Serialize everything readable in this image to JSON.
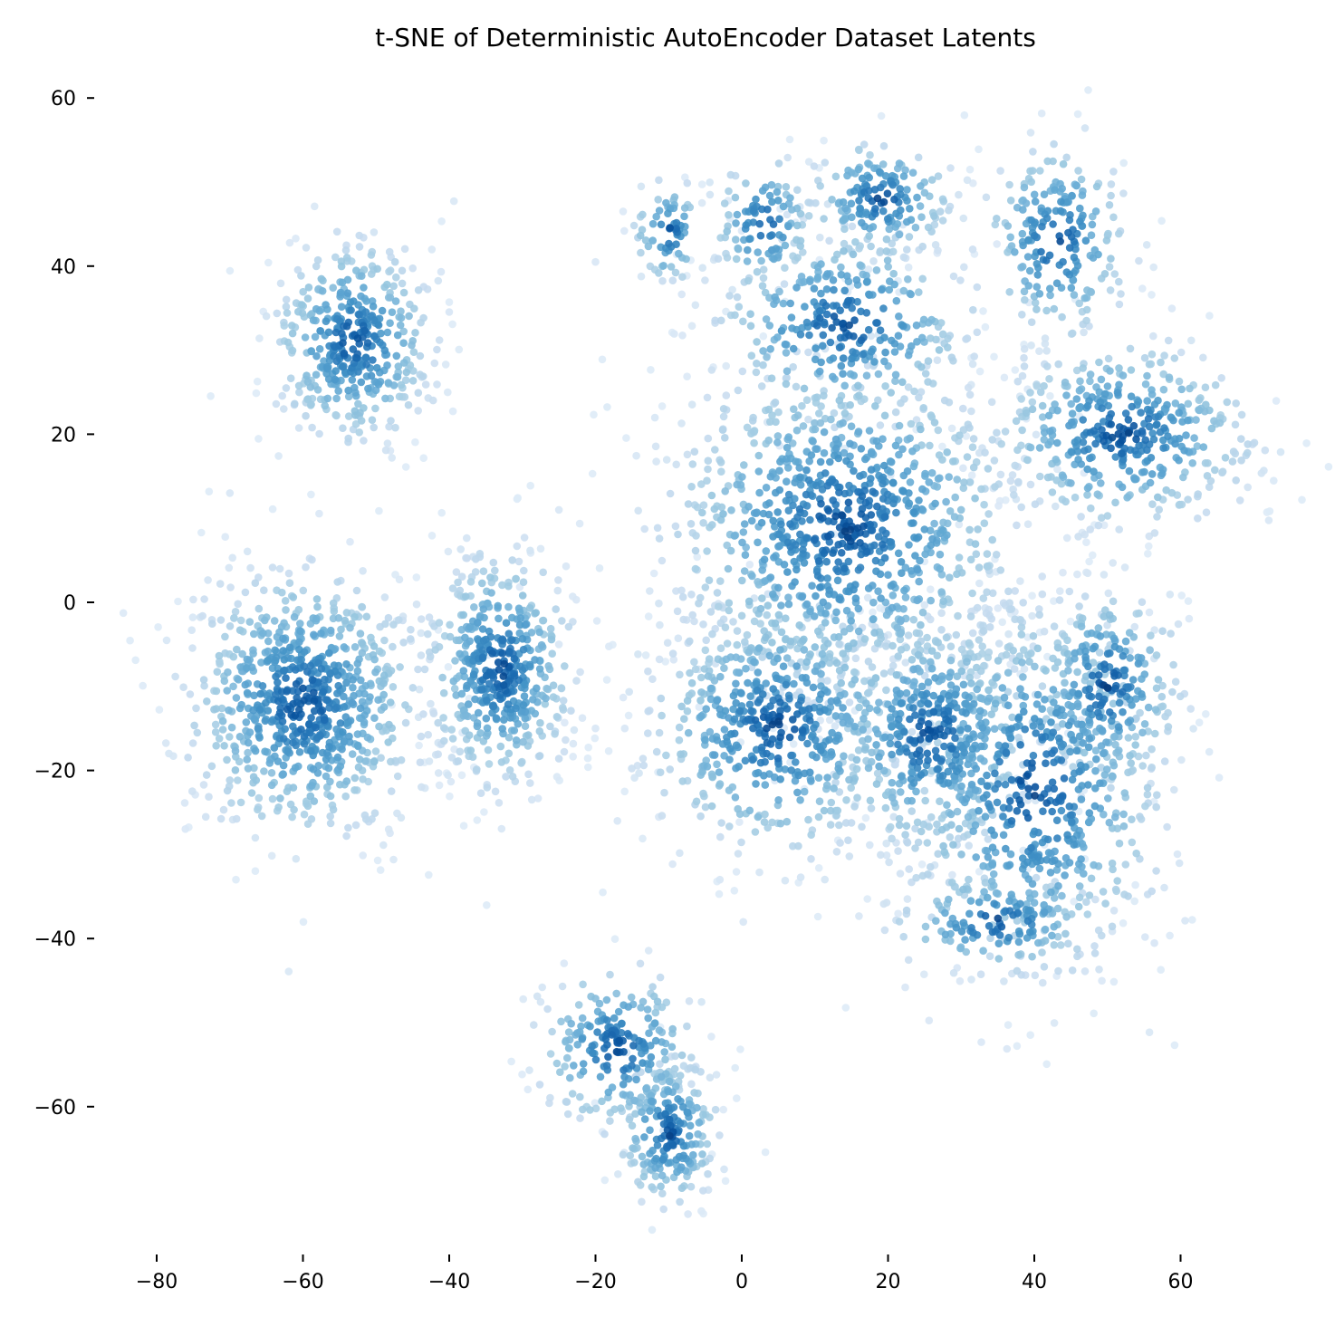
{
  "chart_data": {
    "type": "scatter",
    "title": "t-SNE of Deterministic AutoEncoder Dataset Latents",
    "xlabel": "",
    "ylabel": "",
    "xlim": [
      -81.5,
      72
    ],
    "ylim": [
      -75,
      62
    ],
    "x_ticks": [
      -80,
      -60,
      -40,
      -20,
      0,
      20,
      40,
      60
    ],
    "y_ticks": [
      60,
      40,
      20,
      0,
      -20,
      -40,
      -60
    ],
    "x_tick_labels": [
      "−80",
      "−60",
      "−40",
      "−20",
      "0",
      "20",
      "40",
      "60"
    ],
    "y_tick_labels": [
      "60",
      "40",
      "20",
      "0",
      "−20",
      "−40",
      "−60"
    ],
    "grid": false,
    "colormap": "Blues",
    "color_light": "#deebf7",
    "color_dark": "#08306b",
    "clusters": [
      {
        "cx": -53,
        "cy": 31,
        "sx": 5.5,
        "sy": 6,
        "n": 420
      },
      {
        "cx": -60,
        "cy": -12,
        "sx": 8,
        "sy": 8,
        "n": 780
      },
      {
        "cx": -33,
        "cy": -8,
        "sx": 5,
        "sy": 7,
        "n": 480
      },
      {
        "cx": -17,
        "cy": -53,
        "sx": 5.5,
        "sy": 5,
        "n": 220
      },
      {
        "cx": -10,
        "cy": -63,
        "sx": 3.5,
        "sy": 4.5,
        "n": 220
      },
      {
        "cx": -10,
        "cy": 44,
        "sx": 2.5,
        "sy": 3,
        "n": 70
      },
      {
        "cx": 3,
        "cy": 45,
        "sx": 3.5,
        "sy": 4,
        "n": 110
      },
      {
        "cx": 19,
        "cy": 48,
        "sx": 5,
        "sy": 3.5,
        "n": 170
      },
      {
        "cx": 43,
        "cy": 43,
        "sx": 5,
        "sy": 6,
        "n": 210
      },
      {
        "cx": 14,
        "cy": 33,
        "sx": 9,
        "sy": 6,
        "n": 330
      },
      {
        "cx": 52,
        "cy": 20,
        "sx": 9,
        "sy": 5.5,
        "n": 430
      },
      {
        "cx": 14,
        "cy": 9,
        "sx": 12,
        "sy": 10,
        "n": 980
      },
      {
        "cx": 5,
        "cy": -15,
        "sx": 9,
        "sy": 7.5,
        "n": 560
      },
      {
        "cx": 26,
        "cy": -16,
        "sx": 7,
        "sy": 7,
        "n": 460
      },
      {
        "cx": 40,
        "cy": -22,
        "sx": 9,
        "sy": 11,
        "n": 650
      },
      {
        "cx": 50,
        "cy": -10,
        "sx": 5,
        "sy": 6,
        "n": 240
      },
      {
        "cx": 35,
        "cy": -38,
        "sx": 7,
        "sy": 3,
        "n": 150
      }
    ]
  }
}
